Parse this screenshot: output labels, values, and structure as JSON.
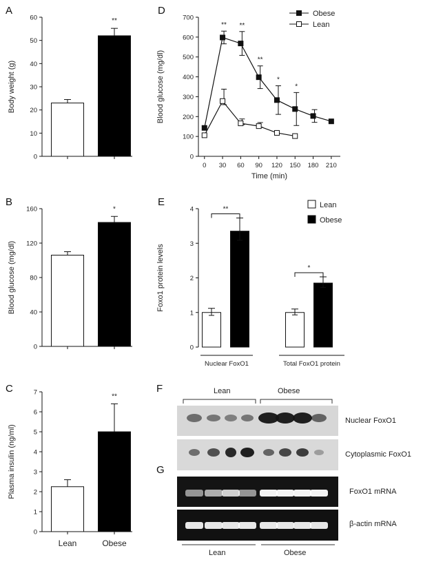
{
  "panels": {
    "A": "A",
    "B": "B",
    "C": "C",
    "D": "D",
    "E": "E",
    "F": "F",
    "G": "G"
  },
  "chart_data": [
    {
      "id": "A",
      "type": "bar",
      "categories": [
        "",
        ""
      ],
      "values": [
        23,
        52
      ],
      "errors": [
        1.5,
        3.2
      ],
      "significance": [
        "",
        "**"
      ],
      "ylabel": "Body weight (g)",
      "ylim": [
        0,
        60
      ],
      "yticks": [
        0,
        10,
        20,
        30,
        40,
        50,
        60
      ],
      "colors": [
        "#ffffff",
        "#000000"
      ]
    },
    {
      "id": "B",
      "type": "bar",
      "categories": [
        "",
        ""
      ],
      "values": [
        106,
        144
      ],
      "errors": [
        4,
        7
      ],
      "significance": [
        "",
        "*"
      ],
      "ylabel": "Blood glucose (mg/dl)",
      "ylim": [
        0,
        160
      ],
      "yticks": [
        0,
        40,
        80,
        120,
        160
      ],
      "colors": [
        "#ffffff",
        "#000000"
      ]
    },
    {
      "id": "C",
      "type": "bar",
      "categories": [
        "Lean",
        "Obese"
      ],
      "values": [
        2.25,
        5.0
      ],
      "errors": [
        0.35,
        1.4
      ],
      "significance": [
        "",
        "**"
      ],
      "ylabel": "Plasma insulin (ng/ml)",
      "ylim": [
        0,
        7
      ],
      "yticks": [
        0,
        1,
        2,
        3,
        4,
        5,
        6,
        7
      ],
      "colors": [
        "#ffffff",
        "#000000"
      ]
    },
    {
      "id": "D",
      "type": "line",
      "xlabel": "Time (min)",
      "ylabel": "Blood glucose (mg/dl)",
      "xlim": [
        -10,
        225
      ],
      "ylim": [
        0,
        700
      ],
      "xticks": [
        0,
        30,
        60,
        90,
        120,
        150,
        180,
        210
      ],
      "yticks": [
        0,
        100,
        200,
        300,
        400,
        500,
        600,
        700
      ],
      "legend_position": "top-right",
      "series": [
        {
          "name": "Obese",
          "x": [
            0,
            30,
            60,
            90,
            120,
            150,
            180,
            210
          ],
          "y": [
            143,
            598,
            568,
            398,
            283,
            238,
            203,
            176
          ],
          "err": [
            0,
            32,
            60,
            57,
            72,
            83,
            32,
            0
          ],
          "significance": [
            "",
            "**",
            "**",
            "**",
            "*",
            "*",
            "",
            ""
          ],
          "marker": "filled-square"
        },
        {
          "name": "Lean",
          "x": [
            0,
            30,
            60,
            90,
            120,
            150
          ],
          "y": [
            106,
            278,
            166,
            152,
            118,
            102
          ],
          "err": [
            0,
            60,
            22,
            18,
            0,
            0
          ],
          "marker": "open-square"
        }
      ]
    },
    {
      "id": "E",
      "type": "bar",
      "ylabel": "Foxo1 protein levels",
      "ylim": [
        0,
        4
      ],
      "yticks": [
        0,
        1,
        2,
        3,
        4
      ],
      "groups": [
        "Nuclear FoxO1",
        "Total FoxO1 protein"
      ],
      "legend_position": "top-right",
      "series": [
        {
          "name": "Lean",
          "values": [
            1.0,
            1.0
          ],
          "errors": [
            0.12,
            0.1
          ],
          "color": "#ffffff"
        },
        {
          "name": "Obese",
          "values": [
            3.35,
            1.85
          ],
          "errors": [
            0.38,
            0.18
          ],
          "color": "#000000"
        }
      ],
      "significance": [
        "**",
        "*"
      ]
    }
  ],
  "blots": {
    "group_top": [
      "Lean",
      "Obese"
    ],
    "group_bottom": [
      "Lean",
      "Obese"
    ],
    "rows": [
      "Nuclear FoxO1",
      "Cytoplasmic FoxO1",
      "FoxO1 mRNA",
      "β-actin mRNA"
    ]
  }
}
